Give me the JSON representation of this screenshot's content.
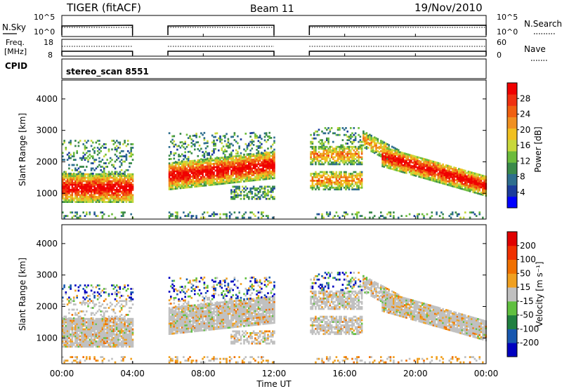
{
  "header": {
    "title": "TIGER (fitACF)",
    "beam": "Beam 11",
    "date": "19/Nov/2010"
  },
  "nsky_panel": {
    "left_label": "N.Sky",
    "right_label": "N.Search",
    "left_ticks": [
      "10^5",
      "10^0"
    ],
    "right_ticks": [
      "10^5",
      "10^0"
    ]
  },
  "freq_panel": {
    "left_label_1": "Freq.",
    "left_label_2": "[MHz]",
    "right_label": "Nave",
    "left_ticks": [
      "18",
      "8"
    ],
    "right_ticks": [
      "60",
      "0"
    ]
  },
  "cpid_panel": {
    "label": "CPID",
    "value": "stereo_scan 8551"
  },
  "chart_data": [
    {
      "type": "heatmap",
      "name": "power",
      "ylabel": "Slant Range [km]",
      "yticks": [
        1000,
        2000,
        3000,
        4000
      ],
      "colorbar_label": "Power [dB]",
      "colorbar_ticks": [
        "28",
        "24",
        "20",
        "16",
        "12",
        "8",
        "4"
      ],
      "colorbar_colors": [
        "#0000ff",
        "#1c3c9c",
        "#2e6e8e",
        "#3a8a4a",
        "#6cbc3c",
        "#c8d83c",
        "#f0c020",
        "#f09020",
        "#f06010",
        "#f03010",
        "#f00000"
      ],
      "data_gaps_utc_hours": [
        [
          4,
          6
        ],
        [
          12,
          14
        ]
      ]
    },
    {
      "type": "heatmap",
      "name": "velocity",
      "ylabel": "Slant Range [km]",
      "yticks": [
        1000,
        2000,
        3000,
        4000
      ],
      "colorbar_label": "Velocity [m s⁻¹]",
      "colorbar_ticks": [
        "200",
        "100",
        "50",
        "15",
        "-15",
        "-50",
        "-100",
        "-200"
      ],
      "colorbar_colors": [
        "#0000c0",
        "#1858b0",
        "#208040",
        "#60c040",
        "#c0c0c0",
        "#f0a020",
        "#f07000",
        "#f03000",
        "#e00000"
      ],
      "data_gaps_utc_hours": [
        [
          4,
          6
        ],
        [
          12,
          14
        ]
      ]
    }
  ],
  "x_axis": {
    "label": "Time UT",
    "ticks": [
      "00:00",
      "04:00",
      "08:00",
      "12:00",
      "16:00",
      "20:00",
      "00:00"
    ]
  },
  "colors": {
    "gap": "#ffffff",
    "ground_scatter": "#c0c0c0"
  }
}
